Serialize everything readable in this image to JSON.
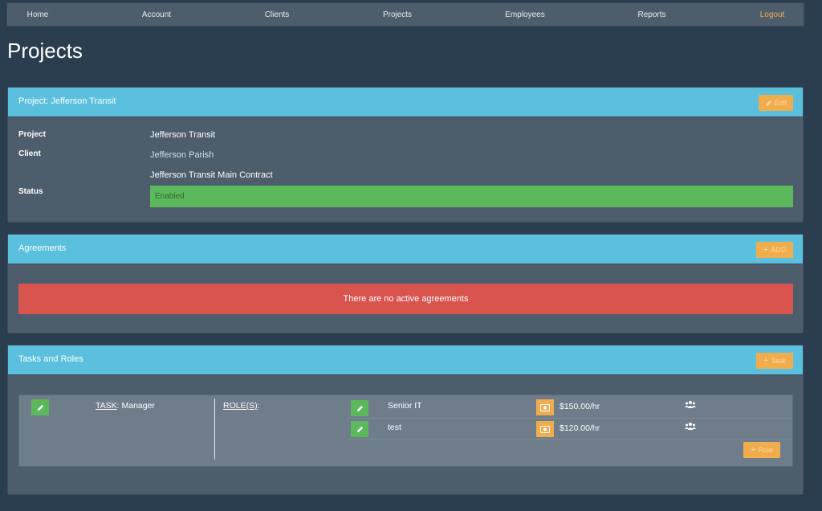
{
  "nav": {
    "items": [
      "Home",
      "Account",
      "Clients",
      "Projects",
      "Employees",
      "Reports"
    ],
    "logout": "Logout"
  },
  "page": {
    "title": "Projects"
  },
  "project_panel": {
    "heading": "Project: Jefferson Transit",
    "edit_label": "Edit",
    "fields": {
      "project_label": "Project",
      "project_value": "Jefferson Transit",
      "client_label": "Client",
      "client_value": "Jefferson Parish",
      "contract_value": "Jefferson Transit Main Contract",
      "status_label": "Status",
      "status_value": "Enabled"
    }
  },
  "agreements_panel": {
    "heading": "Agreements",
    "add_label": "ADD",
    "empty_message": "There are no active agreements"
  },
  "tasks_panel": {
    "heading": "Tasks and Roles",
    "add_task_label": "Task",
    "task_prefix": "TASK",
    "task_name": ": Manager",
    "roles_label": "ROLE(S)",
    "roles_suffix": ":",
    "roles": [
      {
        "name": "Senior IT",
        "rate": "$150.00/hr"
      },
      {
        "name": "test",
        "rate": "$120.00/hr"
      }
    ],
    "add_role_label": "Role"
  },
  "colors": {
    "background": "#2b3e50",
    "panel": "#4e5d6c",
    "panel_heading": "#5bc0de",
    "warning": "#f0ad4e",
    "success": "#5cb85c",
    "danger": "#d9534f"
  }
}
